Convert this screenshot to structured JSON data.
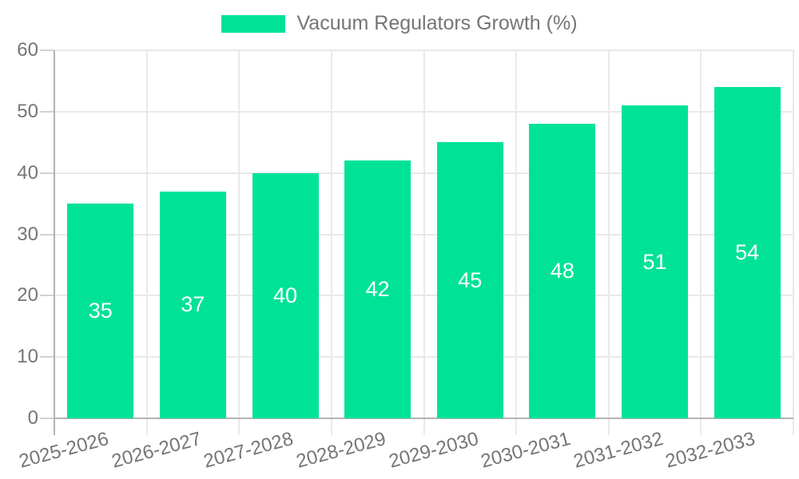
{
  "legend": {
    "label": "Vacuum Regulators Growth (%)"
  },
  "chart_data": {
    "type": "bar",
    "title": "Vacuum Regulators Growth (%)",
    "legend_entries": [
      "Vacuum Regulators Growth (%)"
    ],
    "legend_position": "top",
    "categories": [
      "2025-2026",
      "2026-2027",
      "2027-2028",
      "2028-2029",
      "2029-2030",
      "2030-2031",
      "2031-2032",
      "2032-2033"
    ],
    "series": [
      {
        "name": "Vacuum Regulators Growth (%)",
        "values": [
          35,
          37,
          40,
          42,
          45,
          48,
          51,
          54
        ]
      }
    ],
    "values": [
      35,
      37,
      40,
      42,
      45,
      48,
      51,
      54
    ],
    "value_labels_position": "inside-center",
    "xlabel": "",
    "ylabel": "",
    "ylim": [
      0,
      60
    ],
    "yticks": [
      0,
      10,
      20,
      30,
      40,
      50,
      60
    ],
    "grid": true,
    "x_label_rotation_deg": -15,
    "colors": {
      "bar": "#00E396",
      "value_label": "#FFFFFF",
      "axis_text": "#757575",
      "gridline": "#E9E9E9",
      "axis_line": "#B3B3B3",
      "tick": "#D2D2D2",
      "background": "#FFFFFF"
    }
  }
}
